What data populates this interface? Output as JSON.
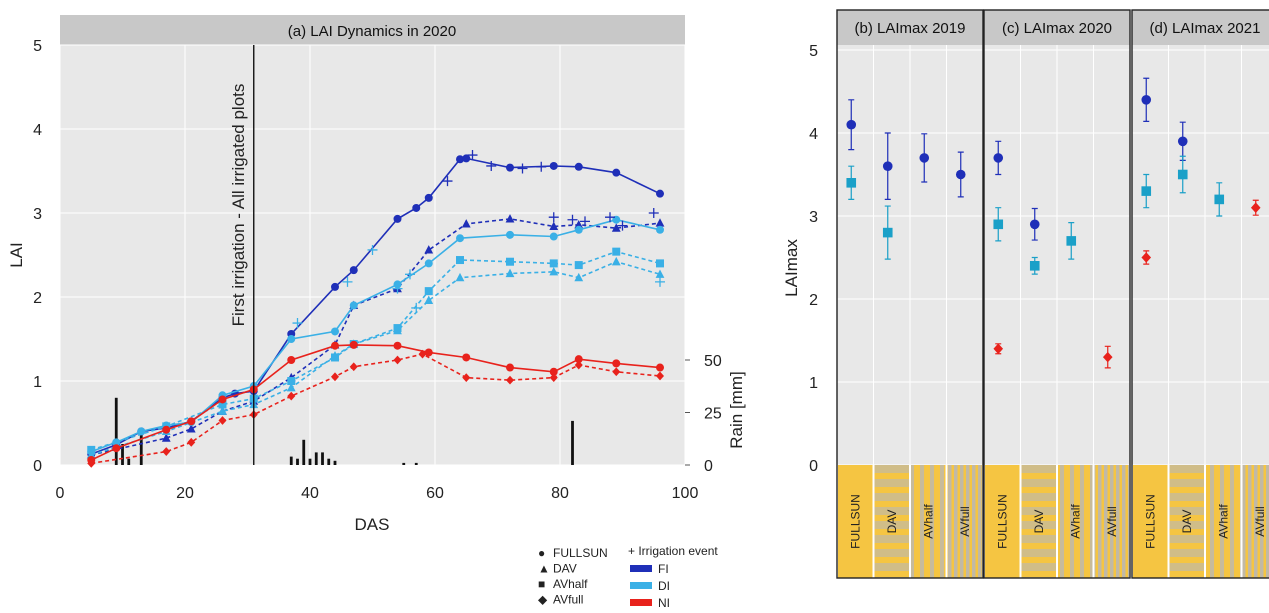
{
  "colors": {
    "FI": "#1f2fb8",
    "DI": "#3ab0e6",
    "NI": "#e8221c",
    "DI_square": "#1aa0c8",
    "plot_bg": "#e8e8e8",
    "header_bg": "#c8c8c8",
    "sun": "#f5c542"
  },
  "chart_data": [
    {
      "type": "line",
      "title": "(a) LAI Dynamics in 2020",
      "xlabel": "DAS",
      "ylabel": "LAI",
      "y2label": "Rain [mm]",
      "xlim": [
        0,
        100
      ],
      "ylim": [
        0,
        5
      ],
      "y2lim": [
        0,
        50
      ],
      "xticks": [
        "0",
        "20",
        "40",
        "60",
        "80",
        "100"
      ],
      "yticks": [
        "0",
        "1",
        "2",
        "3",
        "4",
        "5"
      ],
      "y2ticks": [
        "0",
        "25",
        "50"
      ],
      "annotation": {
        "text": "First irrigation - All irrigated plots",
        "x": 31
      },
      "rain": {
        "x": [
          9,
          10,
          11,
          13,
          37,
          38,
          39,
          40,
          41,
          42,
          43,
          44,
          82,
          55,
          57
        ],
        "values": [
          32,
          10,
          3,
          17,
          4,
          3,
          12,
          3,
          6,
          6,
          3,
          2,
          21,
          1,
          1
        ]
      },
      "series": [
        {
          "treatment": "FI",
          "marker": "circle",
          "dash": false,
          "x": [
            5,
            9,
            13,
            17,
            21,
            26,
            28,
            31,
            37,
            44,
            47,
            54,
            57,
            59,
            64,
            65,
            72,
            79,
            83,
            89,
            96
          ],
          "y": [
            0.13,
            0.24,
            0.4,
            0.44,
            0.52,
            0.8,
            0.85,
            0.88,
            1.56,
            2.12,
            2.32,
            2.93,
            3.06,
            3.18,
            3.64,
            3.65,
            3.54,
            3.56,
            3.55,
            3.48,
            3.23
          ]
        },
        {
          "treatment": "FI",
          "marker": "triangle",
          "dash": true,
          "x": [
            5,
            17,
            21,
            26,
            31,
            37,
            44,
            47,
            54,
            59,
            65,
            72,
            79,
            83,
            89,
            96
          ],
          "y": [
            0.12,
            0.32,
            0.43,
            0.64,
            0.76,
            1.04,
            1.43,
            1.9,
            2.1,
            2.56,
            2.87,
            2.93,
            2.84,
            2.86,
            2.82,
            2.88
          ]
        },
        {
          "treatment": "DI",
          "marker": "circle",
          "dash": false,
          "x": [
            5,
            9,
            13,
            17,
            21,
            26,
            31,
            37,
            44,
            47,
            54,
            59,
            64,
            72,
            79,
            83,
            89,
            96
          ],
          "y": [
            0.16,
            0.27,
            0.4,
            0.47,
            0.51,
            0.83,
            0.94,
            1.5,
            1.59,
            1.9,
            2.15,
            2.4,
            2.7,
            2.74,
            2.72,
            2.8,
            2.92,
            2.8
          ]
        },
        {
          "treatment": "DI",
          "marker": "square",
          "dash": true,
          "x": [
            5,
            17,
            26,
            31,
            37,
            44,
            47,
            54,
            59,
            64,
            72,
            79,
            83,
            89,
            96
          ],
          "y": [
            0.18,
            0.46,
            0.72,
            0.79,
            1.0,
            1.28,
            1.44,
            1.63,
            2.07,
            2.44,
            2.42,
            2.4,
            2.38,
            2.54,
            2.4
          ]
        },
        {
          "treatment": "DI",
          "marker": "triangle",
          "dash": true,
          "x": [
            5,
            17,
            26,
            31,
            37,
            44,
            47,
            54,
            59,
            64,
            72,
            79,
            83,
            89,
            96
          ],
          "y": [
            0.12,
            0.4,
            0.64,
            0.72,
            0.92,
            1.3,
            1.44,
            1.6,
            1.96,
            2.23,
            2.28,
            2.3,
            2.23,
            2.42,
            2.27
          ]
        },
        {
          "treatment": "NI",
          "marker": "circle",
          "dash": false,
          "x": [
            5,
            9,
            17,
            21,
            26,
            31,
            37,
            44,
            47,
            54,
            59,
            65,
            72,
            79,
            83,
            89,
            96
          ],
          "y": [
            0.06,
            0.2,
            0.42,
            0.52,
            0.78,
            0.9,
            1.25,
            1.42,
            1.43,
            1.42,
            1.34,
            1.28,
            1.16,
            1.11,
            1.26,
            1.21,
            1.16
          ]
        },
        {
          "treatment": "NI",
          "marker": "diamond",
          "dash": true,
          "x": [
            5,
            17,
            21,
            26,
            31,
            37,
            44,
            47,
            54,
            58,
            65,
            72,
            79,
            83,
            89,
            96
          ],
          "y": [
            0.02,
            0.16,
            0.27,
            0.53,
            0.6,
            0.82,
            1.05,
            1.17,
            1.25,
            1.32,
            1.04,
            1.01,
            1.04,
            1.19,
            1.11,
            1.06
          ]
        }
      ],
      "irrigation_events": {
        "x": [
          38,
          46,
          50,
          54,
          56,
          57,
          62,
          66,
          69,
          74,
          77,
          79,
          82,
          84,
          88,
          90,
          95,
          96
        ],
        "y": [
          1.69,
          2.18,
          2.56,
          2.1,
          2.27,
          1.87,
          3.38,
          3.69,
          3.56,
          3.53,
          3.55,
          2.95,
          2.92,
          2.9,
          2.95,
          2.85,
          3.0,
          2.18
        ]
      }
    },
    {
      "type": "scatter",
      "ylabel": "LAImax",
      "ylim": [
        0,
        5
      ],
      "yticks": [
        "0",
        "1",
        "2",
        "3",
        "4",
        "5"
      ],
      "categories": [
        "FULLSUN",
        "DAV",
        "AVhalf",
        "AVfull"
      ],
      "panels": [
        {
          "title": "(b) LAImax 2019",
          "points": [
            {
              "cat": 0,
              "treatment": "FI",
              "marker": "circle",
              "y": 4.1,
              "err": 0.3
            },
            {
              "cat": 0,
              "treatment": "DI",
              "marker": "square",
              "y": 3.4,
              "err": 0.2
            },
            {
              "cat": 1,
              "treatment": "FI",
              "marker": "circle",
              "y": 3.6,
              "err": 0.4
            },
            {
              "cat": 1,
              "treatment": "DI",
              "marker": "square",
              "y": 2.8,
              "err": 0.32
            },
            {
              "cat": 2,
              "treatment": "FI",
              "marker": "circle",
              "y": 3.7,
              "err": 0.29
            },
            {
              "cat": 3,
              "treatment": "FI",
              "marker": "circle",
              "y": 3.5,
              "err": 0.27
            }
          ]
        },
        {
          "title": "(c) LAImax 2020",
          "points": [
            {
              "cat": 0,
              "treatment": "FI",
              "marker": "circle",
              "y": 3.7,
              "err": 0.2
            },
            {
              "cat": 0,
              "treatment": "DI",
              "marker": "square",
              "y": 2.9,
              "err": 0.2
            },
            {
              "cat": 0,
              "treatment": "NI",
              "marker": "diamond",
              "y": 1.4,
              "err": 0.06
            },
            {
              "cat": 1,
              "treatment": "FI",
              "marker": "circle",
              "y": 2.9,
              "err": 0.19
            },
            {
              "cat": 1,
              "treatment": "DI",
              "marker": "square",
              "y": 2.4,
              "err": 0.1
            },
            {
              "cat": 2,
              "treatment": "DI",
              "marker": "square",
              "y": 2.7,
              "err": 0.22
            },
            {
              "cat": 3,
              "treatment": "NI",
              "marker": "diamond",
              "y": 1.3,
              "err": 0.13
            }
          ]
        },
        {
          "title": "(d) LAImax 2021",
          "points": [
            {
              "cat": 0,
              "treatment": "FI",
              "marker": "circle",
              "y": 4.4,
              "err": 0.26
            },
            {
              "cat": 0,
              "treatment": "DI",
              "marker": "square",
              "y": 3.3,
              "err": 0.2
            },
            {
              "cat": 0,
              "treatment": "NI",
              "marker": "diamond",
              "y": 2.5,
              "err": 0.08
            },
            {
              "cat": 1,
              "treatment": "FI",
              "marker": "circle",
              "y": 3.9,
              "err": 0.23
            },
            {
              "cat": 1,
              "treatment": "DI",
              "marker": "square",
              "y": 3.5,
              "err": 0.22
            },
            {
              "cat": 2,
              "treatment": "DI",
              "marker": "square",
              "y": 3.2,
              "err": 0.2
            },
            {
              "cat": 3,
              "treatment": "NI",
              "marker": "diamond",
              "y": 3.1,
              "err": 0.09
            }
          ]
        }
      ]
    }
  ],
  "legend": {
    "markers": [
      {
        "symbol": "●",
        "label": "FULLSUN"
      },
      {
        "symbol": "▲",
        "label": "DAV"
      },
      {
        "symbol": "■",
        "label": "AVhalf"
      },
      {
        "symbol": "◆",
        "label": "AVfull"
      }
    ],
    "irrigation_label": "+ Irrigation event",
    "treatments": [
      {
        "key": "FI",
        "label": "FI"
      },
      {
        "key": "DI",
        "label": "DI"
      },
      {
        "key": "NI",
        "label": "NI"
      }
    ]
  }
}
